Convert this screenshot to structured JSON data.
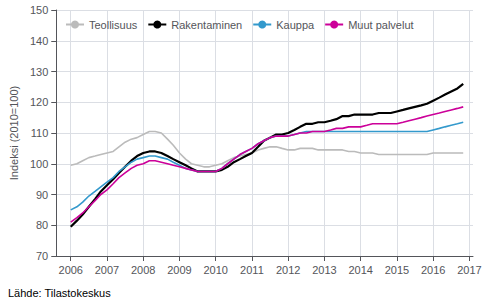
{
  "chart_data": {
    "type": "line",
    "y_label": "Indeksi (2010=100)",
    "source": "Lähde: Tilastokeskus",
    "xlim": [
      2005.6,
      2017.1
    ],
    "ylim": [
      70,
      150
    ],
    "xticks": [
      2006,
      2007,
      2008,
      2009,
      2010,
      2011,
      2012,
      2013,
      2014,
      2015,
      2016,
      2017
    ],
    "yticks": [
      70,
      80,
      90,
      100,
      110,
      120,
      130,
      140,
      150
    ],
    "grid": true,
    "legend": "upper left",
    "x": [
      2006.0,
      2006.17,
      2006.33,
      2006.5,
      2006.67,
      2006.83,
      2007.0,
      2007.17,
      2007.33,
      2007.5,
      2007.67,
      2007.83,
      2008.0,
      2008.17,
      2008.33,
      2008.5,
      2008.67,
      2008.83,
      2009.0,
      2009.17,
      2009.33,
      2009.5,
      2009.67,
      2009.83,
      2010.0,
      2010.17,
      2010.33,
      2010.5,
      2010.67,
      2010.83,
      2011.0,
      2011.17,
      2011.33,
      2011.5,
      2011.67,
      2011.83,
      2012.0,
      2012.17,
      2012.33,
      2012.5,
      2012.67,
      2012.83,
      2013.0,
      2013.17,
      2013.33,
      2013.5,
      2013.67,
      2013.83,
      2014.0,
      2014.17,
      2014.33,
      2014.5,
      2014.67,
      2014.83,
      2015.0,
      2015.17,
      2015.33,
      2015.5,
      2015.67,
      2015.83,
      2016.0,
      2016.17,
      2016.33,
      2016.5,
      2016.67,
      2016.83
    ],
    "series": [
      {
        "name": "Teollisuus",
        "color": "#bbbbbb",
        "values": [
          99.5,
          100.0,
          101.0,
          102.0,
          102.5,
          103.0,
          103.5,
          104.0,
          105.5,
          107.0,
          108.0,
          108.5,
          109.5,
          110.5,
          110.5,
          110.0,
          108.0,
          106.0,
          103.5,
          101.5,
          100.0,
          99.5,
          99.0,
          99.0,
          99.5,
          100.0,
          101.0,
          102.0,
          102.5,
          103.0,
          103.5,
          104.5,
          105.0,
          105.5,
          105.5,
          105.0,
          104.5,
          104.5,
          105.0,
          105.0,
          105.0,
          104.5,
          104.5,
          104.5,
          104.5,
          104.5,
          104.0,
          104.0,
          103.5,
          103.5,
          103.5,
          103.0,
          103.0,
          103.0,
          103.0,
          103.0,
          103.0,
          103.0,
          103.0,
          103.0,
          103.5,
          103.5,
          103.5,
          103.5,
          103.5,
          103.5
        ]
      },
      {
        "name": "Rakentaminen",
        "color": "#000000",
        "values": [
          79.5,
          81.5,
          83.5,
          86.0,
          88.5,
          91.0,
          93.0,
          95.0,
          97.0,
          99.0,
          101.0,
          102.5,
          103.5,
          104.0,
          104.0,
          103.5,
          102.5,
          101.5,
          100.5,
          99.5,
          98.5,
          97.5,
          97.5,
          97.5,
          97.5,
          98.0,
          99.0,
          100.5,
          101.5,
          102.5,
          103.5,
          105.5,
          107.5,
          108.5,
          109.5,
          109.5,
          110.0,
          111.0,
          112.0,
          113.0,
          113.0,
          113.5,
          113.5,
          114.0,
          114.5,
          115.5,
          115.5,
          116.0,
          116.0,
          116.0,
          116.0,
          116.5,
          116.5,
          116.5,
          117.0,
          117.5,
          118.0,
          118.5,
          119.0,
          119.5,
          120.5,
          121.5,
          122.5,
          123.5,
          124.5,
          126.0
        ]
      },
      {
        "name": "Kauppa",
        "color": "#3399cc",
        "values": [
          85.0,
          86.0,
          87.5,
          89.5,
          91.0,
          92.5,
          94.0,
          95.5,
          97.5,
          99.0,
          100.5,
          101.5,
          102.0,
          102.5,
          102.5,
          102.0,
          101.5,
          100.5,
          99.5,
          98.5,
          98.0,
          97.5,
          97.5,
          97.5,
          97.5,
          98.5,
          100.0,
          101.5,
          103.0,
          104.0,
          105.0,
          106.5,
          107.5,
          108.5,
          109.0,
          109.0,
          109.0,
          109.5,
          110.0,
          110.5,
          110.5,
          110.5,
          110.5,
          110.5,
          110.5,
          110.5,
          110.5,
          110.5,
          110.5,
          110.5,
          110.5,
          110.5,
          110.5,
          110.5,
          110.5,
          110.5,
          110.5,
          110.5,
          110.5,
          110.5,
          111.0,
          111.5,
          112.0,
          112.5,
          113.0,
          113.5
        ]
      },
      {
        "name": "Muut palvelut",
        "color": "#cc0099",
        "values": [
          81.0,
          82.5,
          84.0,
          86.0,
          88.0,
          90.0,
          91.5,
          93.5,
          95.5,
          97.0,
          98.5,
          99.5,
          100.0,
          101.0,
          101.0,
          100.5,
          100.0,
          99.5,
          99.0,
          98.5,
          98.0,
          97.5,
          97.5,
          97.5,
          97.5,
          98.5,
          100.0,
          101.5,
          103.0,
          104.0,
          105.0,
          106.5,
          107.5,
          108.5,
          109.0,
          109.0,
          109.0,
          109.5,
          110.0,
          110.0,
          110.5,
          110.5,
          110.5,
          111.0,
          111.5,
          111.5,
          112.0,
          112.0,
          112.0,
          112.5,
          113.0,
          113.0,
          113.0,
          113.0,
          113.0,
          113.5,
          114.0,
          114.5,
          115.0,
          115.5,
          116.0,
          116.5,
          117.0,
          117.5,
          118.0,
          118.5
        ]
      }
    ]
  }
}
